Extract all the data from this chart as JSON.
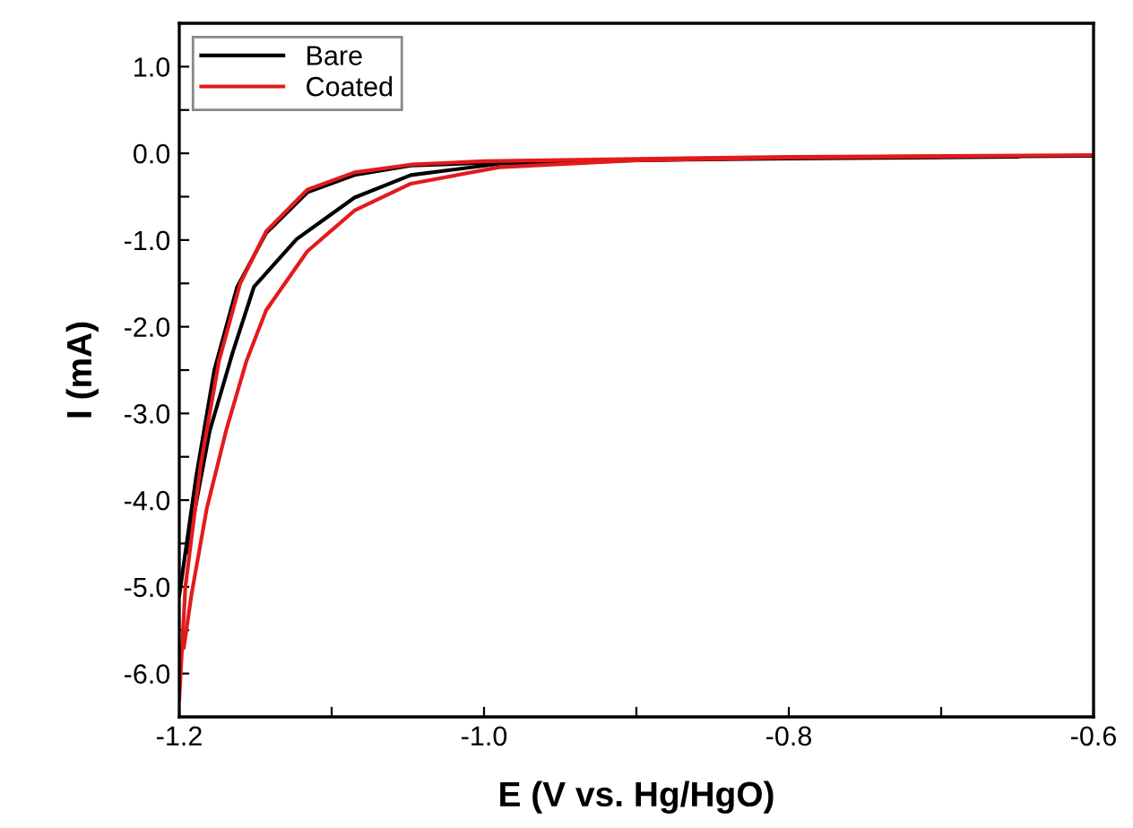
{
  "chart_data": {
    "type": "line",
    "xlabel": "E (V vs. Hg/HgO)",
    "ylabel": "I (mA)",
    "xlim": [
      -1.2,
      -0.6
    ],
    "ylim": [
      -6.5,
      1.5
    ],
    "xticks": [
      {
        "value": -1.2,
        "label": "-1.2"
      },
      {
        "value": -1.1,
        "label": null
      },
      {
        "value": -1.0,
        "label": "-1.0"
      },
      {
        "value": -0.9,
        "label": null
      },
      {
        "value": -0.8,
        "label": "-0.8"
      },
      {
        "value": -0.7,
        "label": null
      },
      {
        "value": -0.6,
        "label": "-0.6"
      }
    ],
    "yticks": [
      {
        "value": 1.0,
        "label": "1.0"
      },
      {
        "value": 0.5,
        "label": null
      },
      {
        "value": 0.0,
        "label": "0.0"
      },
      {
        "value": -0.5,
        "label": null
      },
      {
        "value": -1.0,
        "label": "-1.0"
      },
      {
        "value": -1.5,
        "label": null
      },
      {
        "value": -2.0,
        "label": "-2.0"
      },
      {
        "value": -2.5,
        "label": null
      },
      {
        "value": -3.0,
        "label": "-3.0"
      },
      {
        "value": -3.5,
        "label": null
      },
      {
        "value": -4.0,
        "label": "-4.0"
      },
      {
        "value": -4.5,
        "label": null
      },
      {
        "value": -5.0,
        "label": "-5.0"
      },
      {
        "value": -5.5,
        "label": null
      },
      {
        "value": -6.0,
        "label": "-6.0"
      }
    ],
    "grid": false,
    "legend": "top left",
    "marker": "none",
    "line_style": "solid",
    "series": [
      {
        "name": "Bare",
        "color": "#000000",
        "x": [
          -1.2,
          -1.189,
          -1.177,
          -1.162,
          -1.143,
          -1.116,
          -1.085,
          -1.048,
          -1.0,
          -0.95,
          -0.8,
          -0.6
        ],
        "values": [
          -5.1,
          -3.74,
          -2.5,
          -1.54,
          -0.92,
          -0.45,
          -0.25,
          -0.14,
          -0.11,
          -0.09,
          -0.05,
          -0.03
        ]
      },
      {
        "color": "#000000",
        "x": [
          -1.195,
          -1.18,
          -1.165,
          -1.151,
          -1.123,
          -1.085,
          -1.048,
          -0.99,
          -0.9,
          -0.8,
          -0.65
        ],
        "values": [
          -4.6,
          -3.2,
          -2.3,
          -1.54,
          -0.99,
          -0.51,
          -0.25,
          -0.12,
          -0.08,
          -0.06,
          -0.04
        ]
      },
      {
        "name": "Coated",
        "color": "#e31a1c",
        "x": [
          -1.2,
          -1.196,
          -1.186,
          -1.174,
          -1.16,
          -1.143,
          -1.116,
          -1.085,
          -1.048,
          -1.0,
          -0.8,
          -0.6
        ],
        "values": [
          -6.3,
          -5.0,
          -3.6,
          -2.4,
          -1.5,
          -0.9,
          -0.42,
          -0.22,
          -0.13,
          -0.09,
          -0.04,
          -0.02
        ]
      },
      {
        "color": "#e31a1c",
        "x": [
          -1.197,
          -1.192,
          -1.182,
          -1.169,
          -1.156,
          -1.143,
          -1.116,
          -1.085,
          -1.048,
          -0.99,
          -0.9,
          -0.8,
          -0.65
        ],
        "values": [
          -5.7,
          -5.09,
          -4.1,
          -3.18,
          -2.4,
          -1.81,
          -1.13,
          -0.66,
          -0.35,
          -0.16,
          -0.08,
          -0.05,
          -0.03
        ]
      }
    ]
  }
}
